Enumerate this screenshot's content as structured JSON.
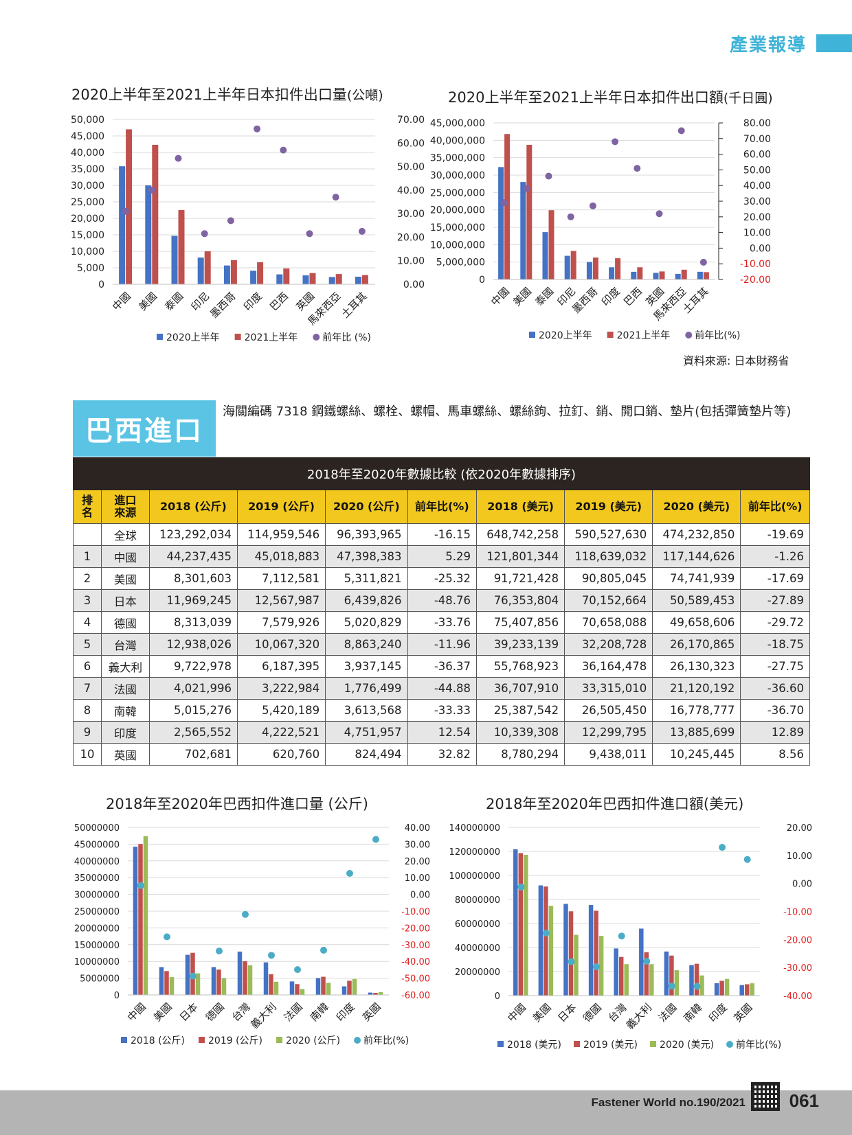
{
  "header": {
    "section_tag": "產業報導"
  },
  "japan": {
    "chart1_title": "2020上半年至2021上半年日本扣件出口量",
    "chart1_unit": "(公噸)",
    "chart2_title": "2020上半年至2021上半年日本扣件出口額",
    "chart2_unit": "(千日圓)",
    "source": "資料來源: 日本財務省"
  },
  "brazil": {
    "section_title": "巴西進口",
    "hs_description": "海關編碼 7318 鋼鐵螺絲、螺栓、螺帽、馬車螺絲、螺絲鉤、拉釘、銷、開口銷、墊片(包括彈簧墊片等)",
    "table_title": "2018年至2020年數據比較 (依2020年數據排序)",
    "table_headers": [
      "排名",
      "進口來源",
      "2018 (公斤)",
      "2019 (公斤)",
      "2020 (公斤)",
      "前年比(%)",
      "2018 (美元)",
      "2019 (美元)",
      "2020 (美元)",
      "前年比(%)"
    ],
    "table_rows": [
      [
        "",
        "全球",
        "123,292,034",
        "114,959,546",
        "96,393,965",
        "-16.15",
        "648,742,258",
        "590,527,630",
        "474,232,850",
        "-19.69"
      ],
      [
        "1",
        "中國",
        "44,237,435",
        "45,018,883",
        "47,398,383",
        "5.29",
        "121,801,344",
        "118,639,032",
        "117,144,626",
        "-1.26"
      ],
      [
        "2",
        "美國",
        "8,301,603",
        "7,112,581",
        "5,311,821",
        "-25.32",
        "91,721,428",
        "90,805,045",
        "74,741,939",
        "-17.69"
      ],
      [
        "3",
        "日本",
        "11,969,245",
        "12,567,987",
        "6,439,826",
        "-48.76",
        "76,353,804",
        "70,152,664",
        "50,589,453",
        "-27.89"
      ],
      [
        "4",
        "德國",
        "8,313,039",
        "7,579,926",
        "5,020,829",
        "-33.76",
        "75,407,856",
        "70,658,088",
        "49,658,606",
        "-29.72"
      ],
      [
        "5",
        "台灣",
        "12,938,026",
        "10,067,320",
        "8,863,240",
        "-11.96",
        "39,233,139",
        "32,208,728",
        "26,170,865",
        "-18.75"
      ],
      [
        "6",
        "義大利",
        "9,722,978",
        "6,187,395",
        "3,937,145",
        "-36.37",
        "55,768,923",
        "36,164,478",
        "26,130,323",
        "-27.75"
      ],
      [
        "7",
        "法國",
        "4,021,996",
        "3,222,984",
        "1,776,499",
        "-44.88",
        "36,707,910",
        "33,315,010",
        "21,120,192",
        "-36.60"
      ],
      [
        "8",
        "南韓",
        "5,015,276",
        "5,420,189",
        "3,613,568",
        "-33.33",
        "25,387,542",
        "26,505,450",
        "16,778,777",
        "-36.70"
      ],
      [
        "9",
        "印度",
        "2,565,552",
        "4,222,521",
        "4,751,957",
        "12.54",
        "10,339,308",
        "12,299,795",
        "13,885,699",
        "12.89"
      ],
      [
        "10",
        "英國",
        "702,681",
        "620,760",
        "824,494",
        "32.82",
        "8,780,294",
        "9,438,011",
        "10,245,445",
        "8.56"
      ]
    ]
  },
  "footer": {
    "brand": "Fastener World no.190/2021",
    "page_number": "061"
  },
  "colors": {
    "accent": "#3fb3d8",
    "series_blue": "#4472c4",
    "series_red": "#c0504d",
    "series_green": "#9bbb59",
    "dot_purple": "#8064a2",
    "dot_teal": "#4bacc6",
    "negative_axis": "#e02020"
  },
  "chart_data": [
    {
      "type": "bar",
      "title": "2020上半年至2021上半年日本扣件出口量 (公噸)",
      "categories": [
        "中國",
        "美國",
        "泰國",
        "印尼",
        "墨西哥",
        "印度",
        "巴西",
        "英國",
        "馬來西亞",
        "土耳其"
      ],
      "series": [
        {
          "name": "2020上半年",
          "values": [
            35800,
            30000,
            14700,
            8100,
            5700,
            4100,
            3000,
            2700,
            2200,
            2300
          ]
        },
        {
          "name": "2021上半年",
          "values": [
            47000,
            42300,
            22500,
            10000,
            7300,
            6700,
            4800,
            3400,
            3100,
            2800
          ]
        },
        {
          "name": "前年比 (%)",
          "kind": "scatter",
          "axis": "right",
          "values": [
            31,
            40,
            53.5,
            21.5,
            27,
            66,
            57,
            21.5,
            37,
            22.5
          ]
        }
      ],
      "left_ticks": [
        "50,000",
        "45,000",
        "40,000",
        "35,000",
        "30,000",
        "25,000",
        "20,000",
        "15,000",
        "10,000",
        "5,000",
        "0"
      ],
      "right_ticks": [
        "70.00",
        "60.00",
        "50.00",
        "40.00",
        "30.00",
        "20.00",
        "10.00",
        "0.00"
      ],
      "ylim": [
        0,
        50000
      ],
      "y2lim": [
        0,
        70
      ],
      "legend_position": "bottom"
    },
    {
      "type": "bar",
      "title": "2020上半年至2021上半年日本扣件出口額 (千日圓)",
      "categories": [
        "中國",
        "美國",
        "泰國",
        "印尼",
        "墨西哥",
        "印度",
        "巴西",
        "英國",
        "馬來西亞",
        "土耳其"
      ],
      "series": [
        {
          "name": "2020上半年",
          "values": [
            32300000,
            28000000,
            13600000,
            6800000,
            5000000,
            3500000,
            2200000,
            1900000,
            1600000,
            2200000
          ]
        },
        {
          "name": "2021上半年",
          "values": [
            41800000,
            38700000,
            19900000,
            8200000,
            6300000,
            6100000,
            3500000,
            2300000,
            2800000,
            2100000
          ]
        },
        {
          "name": "前年比(%)",
          "kind": "scatter",
          "axis": "right",
          "values": [
            29,
            38,
            46,
            20,
            27,
            68,
            51,
            22,
            75,
            -9
          ]
        }
      ],
      "left_ticks": [
        "45,000,000",
        "40,000,000",
        "35,000,000",
        "30,000,000",
        "25,000,000",
        "20,000,000",
        "15,000,000",
        "10,000,000",
        "5,000,000",
        "0"
      ],
      "right_ticks": [
        "80.00",
        "70.00",
        "60.00",
        "50.00",
        "40.00",
        "30.00",
        "20.00",
        "10.00",
        "0.00",
        "-10.00",
        "-20.00"
      ],
      "ylim": [
        0,
        45000000
      ],
      "y2lim": [
        -20,
        80
      ],
      "legend_position": "bottom"
    },
    {
      "type": "bar",
      "title": "2018年至2020年巴西扣件進口量 (公斤)",
      "categories": [
        "中國",
        "美國",
        "日本",
        "德國",
        "台灣",
        "義大利",
        "法國",
        "南韓",
        "印度",
        "英國"
      ],
      "series": [
        {
          "name": "2018 (公斤)",
          "values": [
            44237435,
            8301603,
            11969245,
            8313039,
            12938026,
            9722978,
            4021996,
            5015276,
            2565552,
            702681
          ]
        },
        {
          "name": "2019 (公斤)",
          "values": [
            45018883,
            7112581,
            12567987,
            7579926,
            10067320,
            6187395,
            3222984,
            5420189,
            4222521,
            620760
          ]
        },
        {
          "name": "2020 (公斤)",
          "values": [
            47398383,
            5311821,
            6439826,
            5020829,
            8863240,
            3937145,
            1776499,
            3613568,
            4751957,
            824494
          ]
        },
        {
          "name": "前年比(%)",
          "kind": "scatter",
          "axis": "right",
          "values": [
            5.29,
            -25.32,
            -48.76,
            -33.76,
            -11.96,
            -36.37,
            -44.88,
            -33.33,
            12.54,
            32.82
          ]
        }
      ],
      "left_ticks": [
        "50000000",
        "45000000",
        "40000000",
        "35000000",
        "30000000",
        "25000000",
        "20000000",
        "15000000",
        "10000000",
        "5000000",
        "0"
      ],
      "right_ticks": [
        "40.00",
        "30.00",
        "20.00",
        "10.00",
        "0.00",
        "-10.00",
        "-20.00",
        "-30.00",
        "-40.00",
        "-50.00",
        "-60.00"
      ],
      "ylim": [
        0,
        50000000
      ],
      "y2lim": [
        -60,
        40
      ],
      "legend_position": "bottom"
    },
    {
      "type": "bar",
      "title": "2018年至2020年巴西扣件進口額(美元)",
      "categories": [
        "中國",
        "美國",
        "日本",
        "德國",
        "台灣",
        "義大利",
        "法國",
        "南韓",
        "印度",
        "英國"
      ],
      "series": [
        {
          "name": "2018 (美元)",
          "values": [
            121801344,
            91721428,
            76353804,
            75407856,
            39233139,
            55768923,
            36707910,
            25387542,
            10339308,
            8780294
          ]
        },
        {
          "name": "2019 (美元)",
          "values": [
            118639032,
            90805045,
            70152664,
            70658088,
            32208728,
            36164478,
            33315010,
            26505450,
            12299795,
            9438011
          ]
        },
        {
          "name": "2020 (美元)",
          "values": [
            117144626,
            74741939,
            50589453,
            49658606,
            26170865,
            26130323,
            21120192,
            16778777,
            13885699,
            10245445
          ]
        },
        {
          "name": "前年比(%)",
          "kind": "scatter",
          "axis": "right",
          "values": [
            -1.26,
            -17.69,
            -27.89,
            -29.72,
            -18.75,
            -27.75,
            -36.6,
            -36.7,
            12.89,
            8.56
          ]
        }
      ],
      "left_ticks": [
        "140000000",
        "120000000",
        "100000000",
        "80000000",
        "60000000",
        "40000000",
        "20000000",
        "0"
      ],
      "right_ticks": [
        "20.00",
        "10.00",
        "0.00",
        "-10.00",
        "-20.00",
        "-30.00",
        "-40.00"
      ],
      "ylim": [
        0,
        140000000
      ],
      "y2lim": [
        -40,
        20
      ],
      "legend_position": "bottom"
    }
  ]
}
